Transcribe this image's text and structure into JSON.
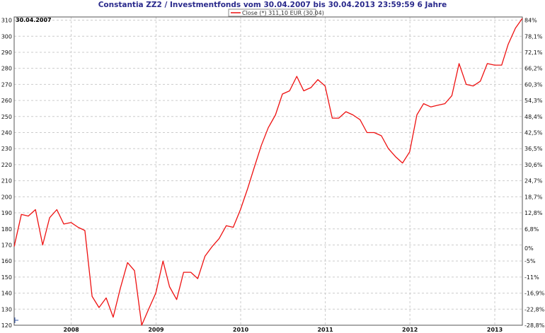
{
  "chart_data": {
    "type": "line",
    "title": "Constantia ZZ2 / Investmentfonds vom 30.04.2007 bis 30.04.2013 23:59:59 6 Jahre",
    "legend": "Close (*) 311,10 EUR (30.04)",
    "start_label": "30.04.2007",
    "series_color": "#ee1111",
    "grid": true,
    "legend_position": "top-center",
    "x_range": [
      "2007-04-30",
      "2013-04-30"
    ],
    "y_left_range": [
      120,
      312
    ],
    "y_left_ticks": [
      "120",
      "130",
      "140",
      "150",
      "160",
      "170",
      "180",
      "190",
      "200",
      "210",
      "220",
      "230",
      "240",
      "250",
      "260",
      "270",
      "280",
      "290",
      "300",
      "310"
    ],
    "y_right_ticks": [
      {
        "label": "-28,8%",
        "at": 120
      },
      {
        "label": "-22,8%",
        "at": 130
      },
      {
        "label": "-16,9%",
        "at": 140
      },
      {
        "label": "-11%",
        "at": 150
      },
      {
        "label": "-5%",
        "at": 160
      },
      {
        "label": "0%",
        "at": 168
      },
      {
        "label": "6,8%",
        "at": 180
      },
      {
        "label": "12,8%",
        "at": 190
      },
      {
        "label": "18,7%",
        "at": 200
      },
      {
        "label": "24,7%",
        "at": 210
      },
      {
        "label": "30,6%",
        "at": 220
      },
      {
        "label": "36,5%",
        "at": 230
      },
      {
        "label": "42,5%",
        "at": 240
      },
      {
        "label": "48,4%",
        "at": 250
      },
      {
        "label": "54,3%",
        "at": 260
      },
      {
        "label": "60,3%",
        "at": 270
      },
      {
        "label": "66,2%",
        "at": 280
      },
      {
        "label": "72,1%",
        "at": 290
      },
      {
        "label": "78,1%",
        "at": 300
      },
      {
        "label": "84%",
        "at": 310
      }
    ],
    "x_ticks": [
      {
        "label": "2008",
        "date": "2008-01-01"
      },
      {
        "label": "2009",
        "date": "2009-01-01"
      },
      {
        "label": "2010",
        "date": "2010-01-01"
      },
      {
        "label": "2011",
        "date": "2011-01-01"
      },
      {
        "label": "2012",
        "date": "2012-01-01"
      },
      {
        "label": "2013",
        "date": "2013-01-01"
      }
    ],
    "series": [
      {
        "name": "Close (*)",
        "points": [
          [
            "2007-04-30",
            169
          ],
          [
            "2007-05-31",
            189
          ],
          [
            "2007-06-30",
            188
          ],
          [
            "2007-07-31",
            192
          ],
          [
            "2007-08-31",
            170
          ],
          [
            "2007-09-30",
            187
          ],
          [
            "2007-10-31",
            192
          ],
          [
            "2007-11-30",
            183
          ],
          [
            "2007-12-31",
            184
          ],
          [
            "2008-01-31",
            181
          ],
          [
            "2008-02-29",
            179
          ],
          [
            "2008-03-31",
            138
          ],
          [
            "2008-04-30",
            131
          ],
          [
            "2008-05-31",
            137
          ],
          [
            "2008-06-30",
            125
          ],
          [
            "2008-07-31",
            143
          ],
          [
            "2008-08-31",
            159
          ],
          [
            "2008-09-30",
            154
          ],
          [
            "2008-10-31",
            120
          ],
          [
            "2008-11-30",
            130
          ],
          [
            "2008-12-31",
            140
          ],
          [
            "2009-01-31",
            160
          ],
          [
            "2009-02-28",
            144
          ],
          [
            "2009-03-31",
            136
          ],
          [
            "2009-04-30",
            153
          ],
          [
            "2009-05-31",
            153
          ],
          [
            "2009-06-30",
            149
          ],
          [
            "2009-07-31",
            163
          ],
          [
            "2009-08-31",
            169
          ],
          [
            "2009-09-30",
            174
          ],
          [
            "2009-10-31",
            182
          ],
          [
            "2009-11-30",
            181
          ],
          [
            "2009-12-31",
            192
          ],
          [
            "2010-01-31",
            205
          ],
          [
            "2010-02-28",
            218
          ],
          [
            "2010-03-31",
            232
          ],
          [
            "2010-04-30",
            243
          ],
          [
            "2010-05-31",
            251
          ],
          [
            "2010-06-30",
            264
          ],
          [
            "2010-07-31",
            266
          ],
          [
            "2010-08-31",
            275
          ],
          [
            "2010-09-30",
            266
          ],
          [
            "2010-10-31",
            268
          ],
          [
            "2010-11-30",
            273
          ],
          [
            "2010-12-31",
            269
          ],
          [
            "2011-01-31",
            249
          ],
          [
            "2011-02-28",
            249
          ],
          [
            "2011-03-31",
            253
          ],
          [
            "2011-04-30",
            251
          ],
          [
            "2011-05-31",
            248
          ],
          [
            "2011-06-30",
            240
          ],
          [
            "2011-07-31",
            240
          ],
          [
            "2011-08-31",
            238
          ],
          [
            "2011-09-30",
            230
          ],
          [
            "2011-10-31",
            225
          ],
          [
            "2011-11-30",
            221
          ],
          [
            "2011-12-31",
            228
          ],
          [
            "2012-01-31",
            251
          ],
          [
            "2012-02-29",
            258
          ],
          [
            "2012-03-31",
            256
          ],
          [
            "2012-04-30",
            257
          ],
          [
            "2012-05-31",
            258
          ],
          [
            "2012-06-30",
            263
          ],
          [
            "2012-07-31",
            283
          ],
          [
            "2012-08-31",
            270
          ],
          [
            "2012-09-30",
            269
          ],
          [
            "2012-10-31",
            272
          ],
          [
            "2012-11-30",
            283
          ],
          [
            "2012-12-31",
            282
          ],
          [
            "2013-01-31",
            282
          ],
          [
            "2013-02-28",
            295
          ],
          [
            "2013-03-31",
            305
          ],
          [
            "2013-04-30",
            311.1
          ]
        ]
      }
    ]
  }
}
